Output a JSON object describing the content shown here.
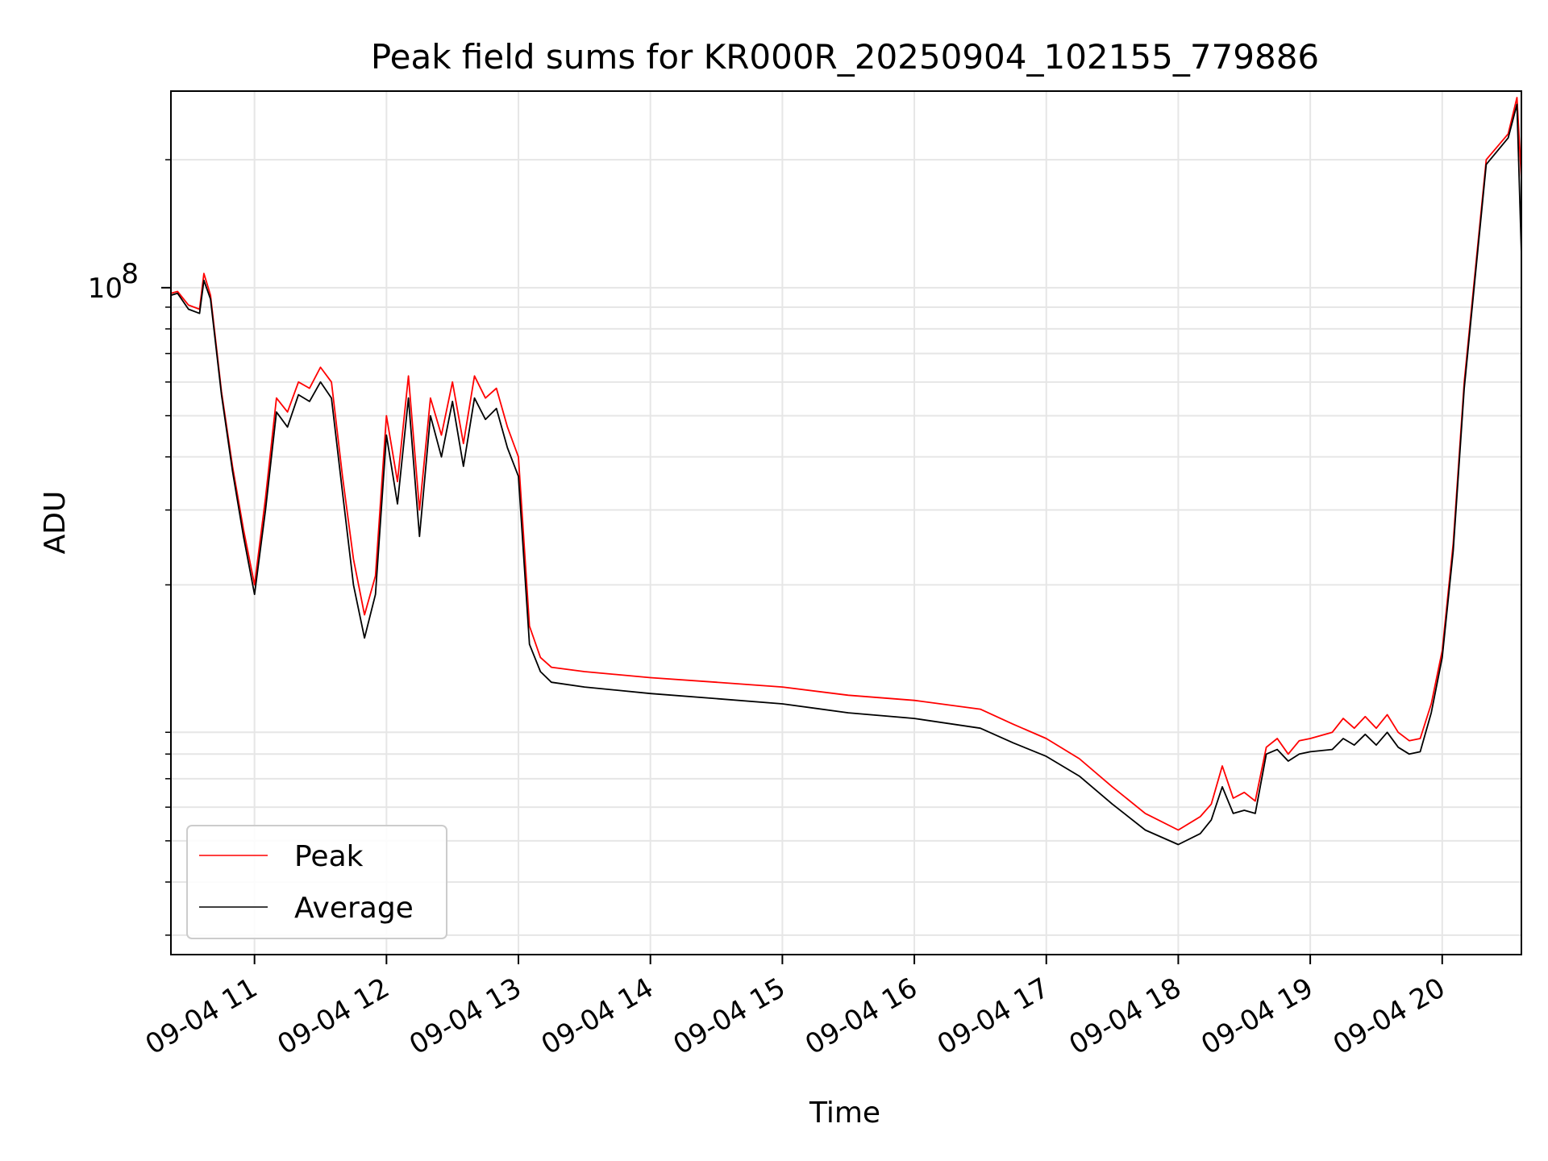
{
  "chart_data": {
    "type": "line",
    "title": "Peak field sums for KR000R_20250904_102155_779886",
    "xlabel": "Time",
    "ylabel": "ADU",
    "x_type": "time",
    "xlim": [
      "2025-09-04T10:22",
      "2025-09-04T20:36"
    ],
    "y_scale": "log",
    "ylim": [
      2700000,
      290000000
    ],
    "grid": true,
    "legend_position": "lower-left",
    "x_ticks": [
      {
        "value": "2025-09-04T11:00",
        "label": "09-04 11"
      },
      {
        "value": "2025-09-04T12:00",
        "label": "09-04 12"
      },
      {
        "value": "2025-09-04T13:00",
        "label": "09-04 13"
      },
      {
        "value": "2025-09-04T14:00",
        "label": "09-04 14"
      },
      {
        "value": "2025-09-04T15:00",
        "label": "09-04 15"
      },
      {
        "value": "2025-09-04T16:00",
        "label": "09-04 16"
      },
      {
        "value": "2025-09-04T17:00",
        "label": "09-04 17"
      },
      {
        "value": "2025-09-04T18:00",
        "label": "09-04 18"
      },
      {
        "value": "2025-09-04T19:00",
        "label": "09-04 19"
      },
      {
        "value": "2025-09-04T20:00",
        "label": "09-04 20"
      }
    ],
    "y_ticks_major": [
      {
        "value": 100000000,
        "label_base": "10",
        "label_exp": "8"
      }
    ],
    "y_ticks_minor": [
      3000000,
      4000000,
      5000000,
      6000000,
      7000000,
      8000000,
      9000000,
      20000000,
      30000000,
      40000000,
      50000000,
      60000000,
      70000000,
      80000000,
      90000000,
      200000000
    ],
    "series": [
      {
        "name": "Peak",
        "color": "#ff0000",
        "x": [
          "2025-09-04T10:22",
          "2025-09-04T10:25",
          "2025-09-04T10:30",
          "2025-09-04T10:35",
          "2025-09-04T10:37",
          "2025-09-04T10:40",
          "2025-09-04T10:45",
          "2025-09-04T10:50",
          "2025-09-04T10:55",
          "2025-09-04T11:00",
          "2025-09-04T11:05",
          "2025-09-04T11:10",
          "2025-09-04T11:15",
          "2025-09-04T11:20",
          "2025-09-04T11:25",
          "2025-09-04T11:30",
          "2025-09-04T11:35",
          "2025-09-04T11:40",
          "2025-09-04T11:45",
          "2025-09-04T11:50",
          "2025-09-04T11:55",
          "2025-09-04T12:00",
          "2025-09-04T12:05",
          "2025-09-04T12:10",
          "2025-09-04T12:15",
          "2025-09-04T12:20",
          "2025-09-04T12:25",
          "2025-09-04T12:30",
          "2025-09-04T12:35",
          "2025-09-04T12:40",
          "2025-09-04T12:45",
          "2025-09-04T12:50",
          "2025-09-04T12:55",
          "2025-09-04T13:00",
          "2025-09-04T13:05",
          "2025-09-04T13:10",
          "2025-09-04T13:15",
          "2025-09-04T13:30",
          "2025-09-04T14:00",
          "2025-09-04T14:30",
          "2025-09-04T15:00",
          "2025-09-04T15:30",
          "2025-09-04T16:00",
          "2025-09-04T16:30",
          "2025-09-04T16:45",
          "2025-09-04T17:00",
          "2025-09-04T17:15",
          "2025-09-04T17:30",
          "2025-09-04T17:45",
          "2025-09-04T18:00",
          "2025-09-04T18:10",
          "2025-09-04T18:15",
          "2025-09-04T18:20",
          "2025-09-04T18:25",
          "2025-09-04T18:30",
          "2025-09-04T18:35",
          "2025-09-04T18:40",
          "2025-09-04T18:45",
          "2025-09-04T18:50",
          "2025-09-04T18:55",
          "2025-09-04T19:00",
          "2025-09-04T19:10",
          "2025-09-04T19:15",
          "2025-09-04T19:20",
          "2025-09-04T19:25",
          "2025-09-04T19:30",
          "2025-09-04T19:35",
          "2025-09-04T19:40",
          "2025-09-04T19:45",
          "2025-09-04T19:50",
          "2025-09-04T19:55",
          "2025-09-04T20:00",
          "2025-09-04T20:05",
          "2025-09-04T20:10",
          "2025-09-04T20:20",
          "2025-09-04T20:30",
          "2025-09-04T20:34",
          "2025-09-04T20:36"
        ],
        "y": [
          97000000,
          98000000,
          91000000,
          89000000,
          108000000,
          96000000,
          57000000,
          38000000,
          27000000,
          20000000,
          32000000,
          55000000,
          51000000,
          60000000,
          58000000,
          65000000,
          60000000,
          36000000,
          23000000,
          17000000,
          21000000,
          50000000,
          35000000,
          62000000,
          30000000,
          55000000,
          45000000,
          60000000,
          43000000,
          62000000,
          55000000,
          58000000,
          47000000,
          40000000,
          16000000,
          13500000,
          12800000,
          12500000,
          12100000,
          11800000,
          11500000,
          11000000,
          10700000,
          10200000,
          9400000,
          8700000,
          7800000,
          6700000,
          5800000,
          5300000,
          5700000,
          6100000,
          7500000,
          6300000,
          6500000,
          6200000,
          8300000,
          8700000,
          8000000,
          8600000,
          8700000,
          9000000,
          9700000,
          9200000,
          9800000,
          9200000,
          9900000,
          9000000,
          8600000,
          8700000,
          10500000,
          14000000,
          25000000,
          60000000,
          200000000,
          230000000,
          280000000,
          180000000
        ]
      },
      {
        "name": "Average",
        "color": "#000000",
        "x": [
          "2025-09-04T10:22",
          "2025-09-04T10:25",
          "2025-09-04T10:30",
          "2025-09-04T10:35",
          "2025-09-04T10:37",
          "2025-09-04T10:40",
          "2025-09-04T10:45",
          "2025-09-04T10:50",
          "2025-09-04T10:55",
          "2025-09-04T11:00",
          "2025-09-04T11:05",
          "2025-09-04T11:10",
          "2025-09-04T11:15",
          "2025-09-04T11:20",
          "2025-09-04T11:25",
          "2025-09-04T11:30",
          "2025-09-04T11:35",
          "2025-09-04T11:40",
          "2025-09-04T11:45",
          "2025-09-04T11:50",
          "2025-09-04T11:55",
          "2025-09-04T12:00",
          "2025-09-04T12:05",
          "2025-09-04T12:10",
          "2025-09-04T12:15",
          "2025-09-04T12:20",
          "2025-09-04T12:25",
          "2025-09-04T12:30",
          "2025-09-04T12:35",
          "2025-09-04T12:40",
          "2025-09-04T12:45",
          "2025-09-04T12:50",
          "2025-09-04T12:55",
          "2025-09-04T13:00",
          "2025-09-04T13:05",
          "2025-09-04T13:10",
          "2025-09-04T13:15",
          "2025-09-04T13:30",
          "2025-09-04T14:00",
          "2025-09-04T14:30",
          "2025-09-04T15:00",
          "2025-09-04T15:30",
          "2025-09-04T16:00",
          "2025-09-04T16:30",
          "2025-09-04T16:45",
          "2025-09-04T17:00",
          "2025-09-04T17:15",
          "2025-09-04T17:30",
          "2025-09-04T17:45",
          "2025-09-04T18:00",
          "2025-09-04T18:10",
          "2025-09-04T18:15",
          "2025-09-04T18:20",
          "2025-09-04T18:25",
          "2025-09-04T18:30",
          "2025-09-04T18:35",
          "2025-09-04T18:40",
          "2025-09-04T18:45",
          "2025-09-04T18:50",
          "2025-09-04T18:55",
          "2025-09-04T19:00",
          "2025-09-04T19:10",
          "2025-09-04T19:15",
          "2025-09-04T19:20",
          "2025-09-04T19:25",
          "2025-09-04T19:30",
          "2025-09-04T19:35",
          "2025-09-04T19:40",
          "2025-09-04T19:45",
          "2025-09-04T19:50",
          "2025-09-04T19:55",
          "2025-09-04T20:00",
          "2025-09-04T20:05",
          "2025-09-04T20:10",
          "2025-09-04T20:20",
          "2025-09-04T20:30",
          "2025-09-04T20:34",
          "2025-09-04T20:36"
        ],
        "y": [
          96000000,
          97000000,
          89000000,
          87000000,
          104000000,
          94000000,
          56000000,
          37000000,
          26000000,
          19000000,
          30000000,
          51000000,
          47000000,
          56000000,
          54000000,
          60000000,
          55000000,
          33000000,
          20000000,
          15000000,
          19000000,
          45000000,
          31000000,
          55000000,
          26000000,
          50000000,
          40000000,
          54000000,
          38000000,
          55000000,
          49000000,
          52000000,
          42000000,
          36000000,
          14500000,
          12500000,
          11800000,
          11500000,
          11100000,
          10800000,
          10500000,
          10000000,
          9700000,
          9200000,
          8500000,
          7900000,
          7100000,
          6100000,
          5300000,
          4900000,
          5200000,
          5600000,
          6700000,
          5800000,
          5900000,
          5800000,
          8000000,
          8200000,
          7700000,
          8000000,
          8100000,
          8200000,
          8700000,
          8400000,
          8900000,
          8400000,
          9000000,
          8300000,
          8000000,
          8100000,
          10000000,
          13500000,
          24000000,
          58000000,
          195000000,
          225000000,
          270000000,
          120000000
        ]
      }
    ]
  }
}
